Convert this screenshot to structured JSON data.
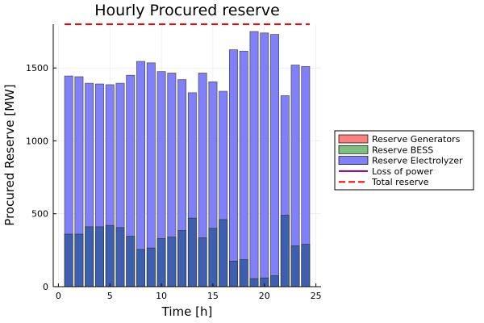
{
  "chart_data": {
    "type": "bar",
    "title": "Hourly Procured reserve",
    "xlabel": "Time [h]",
    "ylabel": "Procured Reserve [MW]",
    "xlim": [
      -0.5,
      25.5
    ],
    "ylim": [
      0,
      1800
    ],
    "xticks": [
      0,
      5,
      10,
      15,
      20,
      25
    ],
    "yticks": [
      0,
      500,
      1000,
      1500
    ],
    "grid": true,
    "legend_position": "right",
    "x": [
      1,
      2,
      3,
      4,
      5,
      6,
      7,
      8,
      9,
      10,
      11,
      12,
      13,
      14,
      15,
      16,
      17,
      18,
      19,
      20,
      21,
      22,
      23,
      24
    ],
    "series": [
      {
        "name": "Reserve Generators",
        "kind": "bar",
        "color": "#ff8080",
        "values": [
          0,
          0,
          0,
          0,
          0,
          0,
          0,
          0,
          0,
          0,
          0,
          0,
          0,
          0,
          0,
          0,
          0,
          0,
          0,
          0,
          0,
          0,
          0,
          0
        ]
      },
      {
        "name": "Reserve BESS",
        "kind": "bar",
        "color": "#80c080",
        "values": [
          0,
          0,
          0,
          0,
          0,
          0,
          0,
          0,
          0,
          0,
          0,
          0,
          0,
          0,
          0,
          0,
          0,
          0,
          0,
          0,
          0,
          0,
          0,
          0
        ]
      },
      {
        "name": "Reserve Electrolyzer",
        "kind": "bar",
        "color": "#8080f8",
        "values": [
          1445,
          1440,
          1395,
          1390,
          1385,
          1395,
          1450,
          1545,
          1535,
          1475,
          1465,
          1420,
          1330,
          1465,
          1405,
          1340,
          1625,
          1615,
          1750,
          1740,
          1730,
          1310,
          1520,
          1510
        ]
      },
      {
        "name": "Loss of power",
        "kind": "bar-overlay",
        "color": "#3d5fb0",
        "legend_color": "#800080",
        "values": [
          360,
          360,
          410,
          410,
          420,
          405,
          345,
          255,
          265,
          330,
          340,
          385,
          470,
          335,
          400,
          460,
          175,
          185,
          55,
          60,
          75,
          490,
          280,
          290
        ]
      },
      {
        "name": "Total reserve",
        "kind": "dashed-line",
        "color": "#ff0000",
        "value": 1800
      }
    ]
  }
}
